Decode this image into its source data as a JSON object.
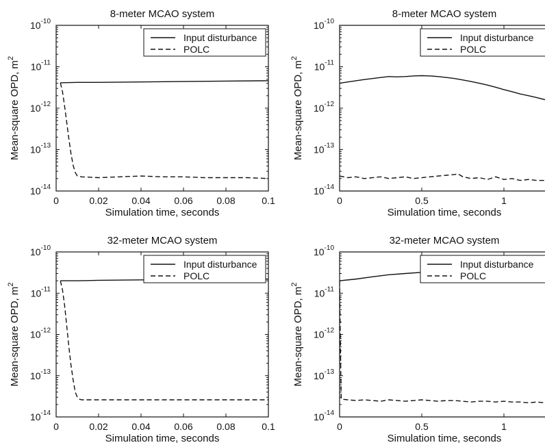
{
  "chart_data": [
    {
      "type": "line",
      "title": "8-meter MCAO system",
      "xlabel": "Simulation time, seconds",
      "ylabel": "Mean-square OPD, m",
      "ylabel_superscript": "2",
      "yscale": "log",
      "xlim": [
        0,
        0.1
      ],
      "ylim": [
        1e-14,
        1e-10
      ],
      "xticks": [
        0,
        0.02,
        0.04,
        0.06,
        0.08,
        0.1
      ],
      "xtick_labels": [
        "0",
        "0.02",
        "0.04",
        "0.06",
        "0.08",
        "0.1"
      ],
      "yticks": [
        1e-14,
        1e-13,
        1e-12,
        1e-11,
        1e-10
      ],
      "ytick_labels": [
        {
          "base": "10",
          "exp": "-14"
        },
        {
          "base": "10",
          "exp": "-13"
        },
        {
          "base": "10",
          "exp": "-12"
        },
        {
          "base": "10",
          "exp": "-11"
        },
        {
          "base": "10",
          "exp": "-10"
        }
      ],
      "legend": "top-right",
      "series": [
        {
          "name": "Input disturbance",
          "style": "solid",
          "x": [
            0.002,
            0.01,
            0.02,
            0.04,
            0.06,
            0.08,
            0.1
          ],
          "y": [
            4.1e-12,
            4.2e-12,
            4.2e-12,
            4.3e-12,
            4.4e-12,
            4.5e-12,
            4.6e-12
          ]
        },
        {
          "name": "POLC",
          "style": "dashed",
          "x": [
            0.002,
            0.003,
            0.004,
            0.005,
            0.006,
            0.007,
            0.008,
            0.009,
            0.01,
            0.012,
            0.02,
            0.03,
            0.04,
            0.05,
            0.06,
            0.07,
            0.08,
            0.09,
            0.1
          ],
          "y": [
            4.1e-12,
            2.5e-12,
            1.1e-12,
            4.5e-13,
            1.8e-13,
            8e-14,
            4.2e-14,
            2.8e-14,
            2.3e-14,
            2.2e-14,
            2.1e-14,
            2.2e-14,
            2.3e-14,
            2.2e-14,
            2.2e-14,
            2.1e-14,
            2.1e-14,
            2.1e-14,
            2e-14
          ]
        }
      ]
    },
    {
      "type": "line",
      "title": "8-meter MCAO system",
      "xlabel": "Simulation time, seconds",
      "ylabel": "Mean-square OPD, m",
      "ylabel_superscript": "2",
      "yscale": "log",
      "xlim": [
        0,
        1.25
      ],
      "ylim": [
        1e-14,
        1e-10
      ],
      "xticks": [
        0,
        0.5,
        1
      ],
      "xtick_labels": [
        "0",
        "0.5",
        "1"
      ],
      "yticks": [
        1e-14,
        1e-13,
        1e-12,
        1e-11,
        1e-10
      ],
      "ytick_labels": [
        {
          "base": "10",
          "exp": "-14"
        },
        {
          "base": "10",
          "exp": "-13"
        },
        {
          "base": "10",
          "exp": "-12"
        },
        {
          "base": "10",
          "exp": "-11"
        },
        {
          "base": "10",
          "exp": "-10"
        }
      ],
      "legend": "top-right",
      "series": [
        {
          "name": "Input disturbance",
          "style": "solid",
          "x": [
            0,
            0.05,
            0.1,
            0.15,
            0.2,
            0.25,
            0.3,
            0.35,
            0.4,
            0.45,
            0.5,
            0.55,
            0.6,
            0.65,
            0.7,
            0.75,
            0.8,
            0.85,
            0.9,
            0.95,
            1.0,
            1.05,
            1.1,
            1.15,
            1.2,
            1.25
          ],
          "y": [
            4e-12,
            4.3e-12,
            4.6e-12,
            4.9e-12,
            5.2e-12,
            5.5e-12,
            5.8e-12,
            5.7e-12,
            5.8e-12,
            6e-12,
            6.1e-12,
            6e-12,
            5.8e-12,
            5.5e-12,
            5.2e-12,
            4.8e-12,
            4.4e-12,
            4e-12,
            3.6e-12,
            3.2e-12,
            2.8e-12,
            2.5e-12,
            2.2e-12,
            2e-12,
            1.8e-12,
            1.6e-12
          ]
        },
        {
          "name": "POLC",
          "style": "dashed",
          "x": [
            0,
            0.05,
            0.1,
            0.15,
            0.2,
            0.25,
            0.3,
            0.35,
            0.4,
            0.45,
            0.5,
            0.55,
            0.6,
            0.65,
            0.7,
            0.72,
            0.75,
            0.8,
            0.85,
            0.9,
            0.95,
            1.0,
            1.05,
            1.1,
            1.15,
            1.2,
            1.25
          ],
          "y": [
            2.3e-14,
            2.1e-14,
            2.2e-14,
            2e-14,
            2.1e-14,
            2.2e-14,
            2e-14,
            2.1e-14,
            2.2e-14,
            2e-14,
            2.1e-14,
            2.2e-14,
            2.3e-14,
            2.4e-14,
            2.5e-14,
            2.6e-14,
            2.2e-14,
            2e-14,
            2.1e-14,
            1.9e-14,
            2.2e-14,
            1.9e-14,
            2e-14,
            1.8e-14,
            1.9e-14,
            1.8e-14,
            1.8e-14
          ]
        }
      ]
    },
    {
      "type": "line",
      "title": "32-meter MCAO system",
      "xlabel": "Simulation time, seconds",
      "ylabel": "Mean-square OPD, m",
      "ylabel_superscript": "2",
      "yscale": "log",
      "xlim": [
        0,
        0.1
      ],
      "ylim": [
        1e-14,
        1e-10
      ],
      "xticks": [
        0,
        0.02,
        0.04,
        0.06,
        0.08,
        0.1
      ],
      "xtick_labels": [
        "0",
        "0.02",
        "0.04",
        "0.06",
        "0.08",
        "0.1"
      ],
      "yticks": [
        1e-14,
        1e-13,
        1e-12,
        1e-11,
        1e-10
      ],
      "ytick_labels": [
        {
          "base": "10",
          "exp": "-14"
        },
        {
          "base": "10",
          "exp": "-13"
        },
        {
          "base": "10",
          "exp": "-12"
        },
        {
          "base": "10",
          "exp": "-11"
        },
        {
          "base": "10",
          "exp": "-10"
        }
      ],
      "legend": "top-right",
      "series": [
        {
          "name": "Input disturbance",
          "style": "solid",
          "x": [
            0.002,
            0.01,
            0.02,
            0.04,
            0.06,
            0.08,
            0.1
          ],
          "y": [
            2e-11,
            2e-11,
            2.05e-11,
            2.1e-11,
            2.1e-11,
            2.15e-11,
            2.2e-11
          ]
        },
        {
          "name": "POLC",
          "style": "dashed",
          "x": [
            0.002,
            0.003,
            0.004,
            0.005,
            0.006,
            0.007,
            0.008,
            0.009,
            0.01,
            0.011,
            0.012,
            0.014,
            0.02,
            0.03,
            0.04,
            0.05,
            0.06,
            0.07,
            0.08,
            0.09,
            0.1
          ],
          "y": [
            2e-11,
            1.2e-11,
            5e-12,
            1.6e-12,
            5e-13,
            1.8e-13,
            8e-14,
            4e-14,
            3e-14,
            2.7e-14,
            2.6e-14,
            2.6e-14,
            2.6e-14,
            2.6e-14,
            2.6e-14,
            2.6e-14,
            2.6e-14,
            2.6e-14,
            2.6e-14,
            2.6e-14,
            2.6e-14
          ]
        }
      ]
    },
    {
      "type": "line",
      "title": "32-meter MCAO system",
      "xlabel": "Simulation time, seconds",
      "ylabel": "Mean-square OPD, m",
      "ylabel_superscript": "2",
      "yscale": "log",
      "xlim": [
        0,
        1.25
      ],
      "ylim": [
        1e-14,
        1e-10
      ],
      "xticks": [
        0,
        0.5,
        1
      ],
      "xtick_labels": [
        "0",
        "0.5",
        "1"
      ],
      "yticks": [
        1e-14,
        1e-13,
        1e-12,
        1e-11,
        1e-10
      ],
      "ytick_labels": [
        {
          "base": "10",
          "exp": "-14"
        },
        {
          "base": "10",
          "exp": "-13"
        },
        {
          "base": "10",
          "exp": "-12"
        },
        {
          "base": "10",
          "exp": "-11"
        },
        {
          "base": "10",
          "exp": "-10"
        }
      ],
      "legend": "top-right",
      "series": [
        {
          "name": "Input disturbance",
          "style": "solid",
          "x": [
            0,
            0.1,
            0.2,
            0.3,
            0.4,
            0.5,
            0.6
          ],
          "y": [
            2e-11,
            2.2e-11,
            2.5e-11,
            2.8e-11,
            3e-11,
            3.2e-11,
            3.4e-11
          ]
        },
        {
          "name": "POLC",
          "style": "dashed",
          "x": [
            0,
            0.005,
            0.01,
            0.05,
            0.1,
            0.15,
            0.2,
            0.25,
            0.3,
            0.35,
            0.4,
            0.45,
            0.5,
            0.55,
            0.6,
            0.65,
            0.7,
            0.75,
            0.8,
            0.85,
            0.9,
            0.95,
            1.0,
            1.05,
            1.1,
            1.15,
            1.2,
            1.25
          ],
          "y": [
            2e-11,
            5e-13,
            2.7e-14,
            2.6e-14,
            2.5e-14,
            2.6e-14,
            2.5e-14,
            2.4e-14,
            2.6e-14,
            2.5e-14,
            2.4e-14,
            2.5e-14,
            2.6e-14,
            2.5e-14,
            2.4e-14,
            2.5e-14,
            2.5e-14,
            2.4e-14,
            2.3e-14,
            2.4e-14,
            2.4e-14,
            2.3e-14,
            2.4e-14,
            2.3e-14,
            2.3e-14,
            2.2e-14,
            2.3e-14,
            2.2e-14
          ]
        }
      ]
    }
  ]
}
